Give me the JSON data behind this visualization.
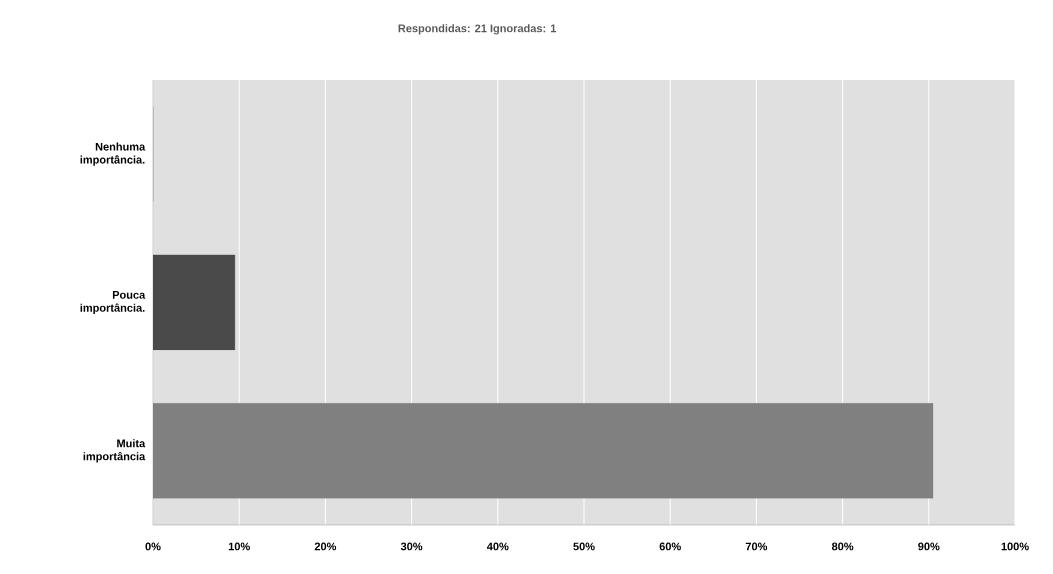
{
  "chart_data": {
    "type": "bar",
    "orientation": "horizontal",
    "title": "Respondidas: 21    Ignoradas: 1",
    "categories": [
      "Nenhuma importância.",
      "Pouca importância.",
      "Muita importância"
    ],
    "values": [
      0,
      9.5,
      90.5
    ],
    "colors": [
      "#4a4a4a",
      "#4a4a4a",
      "#808080"
    ],
    "xlim": [
      0,
      100
    ],
    "xticks": [
      {
        "value": 0,
        "label": "0%"
      },
      {
        "value": 10,
        "label": "10%"
      },
      {
        "value": 20,
        "label": "20%"
      },
      {
        "value": 30,
        "label": "30%"
      },
      {
        "value": 40,
        "label": "40%"
      },
      {
        "value": 50,
        "label": "50%"
      },
      {
        "value": 60,
        "label": "60%"
      },
      {
        "value": 70,
        "label": "70%"
      },
      {
        "value": 80,
        "label": "80%"
      },
      {
        "value": 90,
        "label": "90%"
      },
      {
        "value": 100,
        "label": "100%"
      }
    ],
    "grid": "x"
  }
}
